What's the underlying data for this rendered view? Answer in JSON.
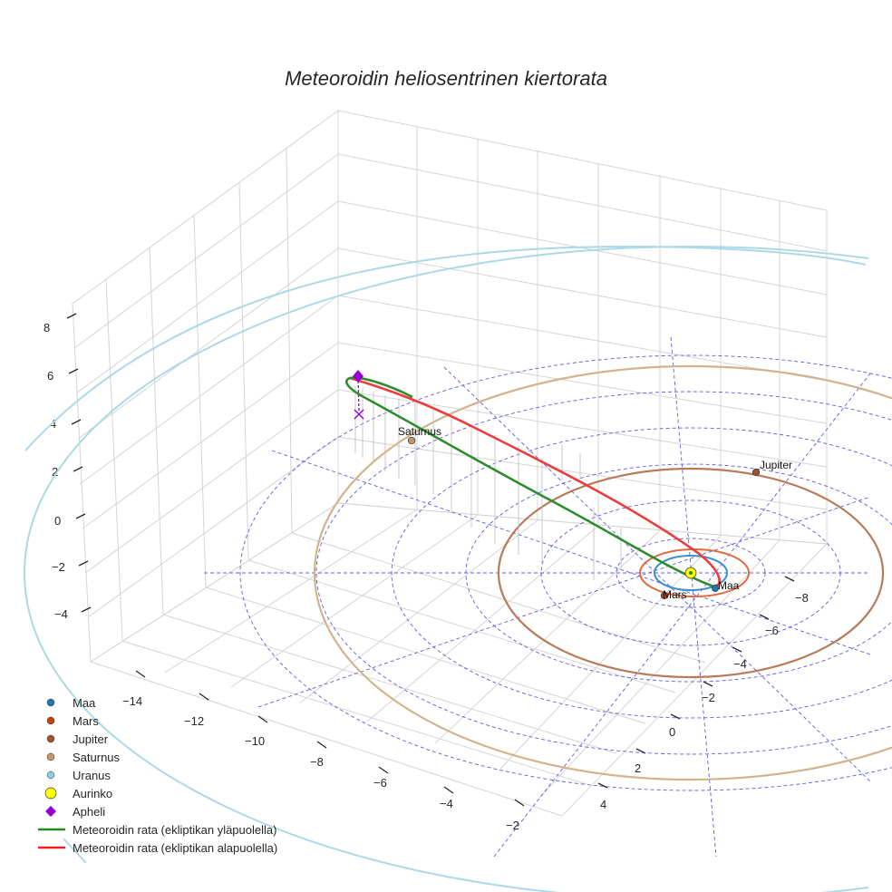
{
  "chart_data": {
    "type": "scatter",
    "title": "Meteoroidin heliosentrinen kiertorata",
    "axes": {
      "z_ticks": [
        "8",
        "6",
        "4",
        "2",
        "0",
        "−2",
        "−4"
      ],
      "x_ticks": [
        "−14",
        "−12",
        "−10",
        "−8",
        "−6",
        "−4",
        "−2"
      ],
      "y_ticks": [
        "−8",
        "−6",
        "−4",
        "−2",
        "0",
        "2",
        "4"
      ]
    },
    "planet_labels": [
      {
        "name": "Saturnus"
      },
      {
        "name": "Jupiter"
      },
      {
        "name": "Mars"
      },
      {
        "name": "Maa"
      }
    ],
    "legend": [
      {
        "label": "Maa",
        "marker": "dot",
        "color": "#1f77b4"
      },
      {
        "label": "Mars",
        "marker": "dot",
        "color": "#c1440e"
      },
      {
        "label": "Jupiter",
        "marker": "dot",
        "color": "#a0522d"
      },
      {
        "label": "Saturnus",
        "marker": "dot",
        "color": "#c2956b"
      },
      {
        "label": "Uranus",
        "marker": "dot",
        "color": "#8fcfe0"
      },
      {
        "label": "Aurinko",
        "marker": "bigdot",
        "color": "#ffff00"
      },
      {
        "label": "Apheli",
        "marker": "diamond",
        "color": "#9400d3"
      },
      {
        "label": "Meteoroidin rata (ekliptikan yläpuolella)",
        "marker": "line",
        "color": "#228b22"
      },
      {
        "label": "Meteoroidin rata (ekliptikan alapuolella)",
        "marker": "line",
        "color": "#ee2222"
      }
    ]
  }
}
